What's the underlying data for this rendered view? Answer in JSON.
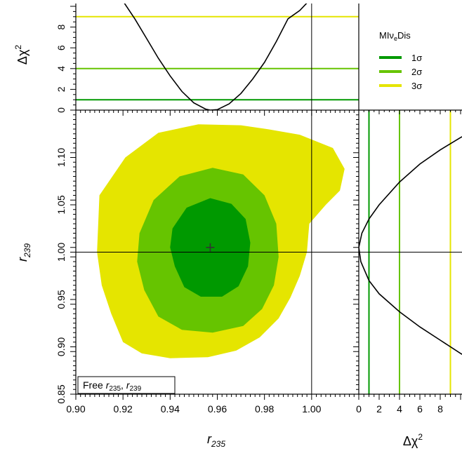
{
  "chart_data": {
    "type": "contour",
    "experiment": "MIνeDis",
    "x_axis": {
      "label_base": "r",
      "label_sub": "235",
      "lim": [
        0.9,
        1.02
      ],
      "ticks": [
        "0.90",
        "0.92",
        "0.94",
        "0.96",
        "0.98",
        "1.00"
      ]
    },
    "y_axis": {
      "label_base": "r",
      "label_sub": "239",
      "lim": [
        0.85,
        1.15
      ],
      "ticks": [
        "0.85",
        "0.90",
        "0.95",
        "1.00",
        "1.05",
        "1.10"
      ]
    },
    "delta_chi2_axis": {
      "label": "Δχ",
      "label_sup": "2",
      "lim": [
        0,
        10
      ],
      "ticks": [
        "0",
        "2",
        "4",
        "6",
        "8"
      ]
    },
    "best_fit": {
      "r235": 0.957,
      "r239": 1.005
    },
    "reference_point": {
      "r235": 1.0,
      "r239": 1.0
    },
    "annotation": {
      "prefix": "Free ",
      "r1_base": "r",
      "r1_sub": "235",
      "separator": ", ",
      "r2_base": "r",
      "r2_sub": "239"
    },
    "legend": {
      "title": "MIν",
      "title_sub": "e",
      "title_suffix": "Dis",
      "entries": [
        {
          "label": "1σ",
          "delta_chi2": 1,
          "color": "#009900"
        },
        {
          "label": "2σ",
          "delta_chi2": 4,
          "color": "#66c400"
        },
        {
          "label": "3σ",
          "delta_chi2": 9,
          "color": "#e5e500"
        }
      ]
    },
    "regions": [
      {
        "level": "3σ",
        "color": "#e5e500",
        "points": [
          [
            0.915,
            0.935
          ],
          [
            0.92,
            0.905
          ],
          [
            0.928,
            0.893
          ],
          [
            0.94,
            0.888
          ],
          [
            0.956,
            0.889
          ],
          [
            0.968,
            0.896
          ],
          [
            0.978,
            0.91
          ],
          [
            0.986,
            0.93
          ],
          [
            0.991,
            0.952
          ],
          [
            0.995,
            0.975
          ],
          [
            0.998,
            1.0
          ],
          [
            0.999,
            1.03
          ],
          [
            1.006,
            1.05
          ],
          [
            1.012,
            1.065
          ],
          [
            1.014,
            1.088
          ],
          [
            1.009,
            1.11
          ],
          [
            0.995,
            1.124
          ],
          [
            0.981,
            1.13
          ],
          [
            0.97,
            1.134
          ],
          [
            0.952,
            1.135
          ],
          [
            0.935,
            1.126
          ],
          [
            0.921,
            1.1
          ],
          [
            0.91,
            1.06
          ],
          [
            0.909,
            1.0
          ],
          [
            0.911,
            0.965
          ]
        ]
      },
      {
        "level": "2σ",
        "color": "#66c400",
        "points": [
          [
            0.929,
            0.96
          ],
          [
            0.935,
            0.932
          ],
          [
            0.945,
            0.918
          ],
          [
            0.958,
            0.915
          ],
          [
            0.971,
            0.922
          ],
          [
            0.979,
            0.94
          ],
          [
            0.984,
            0.965
          ],
          [
            0.986,
            0.995
          ],
          [
            0.985,
            1.03
          ],
          [
            0.98,
            1.06
          ],
          [
            0.971,
            1.082
          ],
          [
            0.958,
            1.089
          ],
          [
            0.944,
            1.08
          ],
          [
            0.933,
            1.055
          ],
          [
            0.927,
            1.02
          ],
          [
            0.926,
            0.99
          ]
        ]
      },
      {
        "level": "1σ",
        "color": "#009900",
        "points": [
          [
            0.942,
            0.985
          ],
          [
            0.946,
            0.963
          ],
          [
            0.953,
            0.953
          ],
          [
            0.962,
            0.953
          ],
          [
            0.969,
            0.964
          ],
          [
            0.973,
            0.985
          ],
          [
            0.974,
            1.01
          ],
          [
            0.972,
            1.035
          ],
          [
            0.966,
            1.051
          ],
          [
            0.957,
            1.057
          ],
          [
            0.947,
            1.047
          ],
          [
            0.941,
            1.025
          ],
          [
            0.94,
            1.005
          ]
        ]
      }
    ],
    "profile_r235": [
      [
        0.92,
        10.5
      ],
      [
        0.925,
        8.8
      ],
      [
        0.93,
        6.9
      ],
      [
        0.935,
        5.0
      ],
      [
        0.94,
        3.3
      ],
      [
        0.945,
        1.8
      ],
      [
        0.95,
        0.7
      ],
      [
        0.955,
        0.1
      ],
      [
        0.957,
        0.0
      ],
      [
        0.96,
        0.05
      ],
      [
        0.965,
        0.6
      ],
      [
        0.97,
        1.6
      ],
      [
        0.975,
        3.0
      ],
      [
        0.98,
        4.6
      ],
      [
        0.985,
        6.6
      ],
      [
        0.99,
        8.8
      ],
      [
        0.995,
        9.6
      ],
      [
        1.0,
        10.8
      ]
    ],
    "profile_r239": [
      [
        0.0,
        1.005
      ],
      [
        0.2,
        0.99
      ],
      [
        1.0,
        0.97
      ],
      [
        2.0,
        0.956
      ],
      [
        4.0,
        0.937
      ],
      [
        6.0,
        0.921
      ],
      [
        8.0,
        0.907
      ],
      [
        10.0,
        0.893
      ],
      [
        10.5,
        0.89
      ],
      [
        0.3,
        1.02
      ],
      [
        1.0,
        1.035
      ],
      [
        2.0,
        1.05
      ],
      [
        4.0,
        1.074
      ],
      [
        6.0,
        1.093
      ],
      [
        8.0,
        1.108
      ],
      [
        10.0,
        1.121
      ],
      [
        10.5,
        1.124
      ]
    ]
  }
}
